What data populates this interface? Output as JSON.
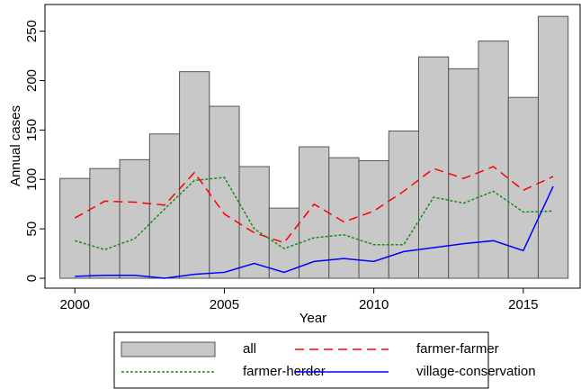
{
  "chart_data": {
    "type": "bar",
    "x": [
      2000,
      2001,
      2002,
      2003,
      2004,
      2005,
      2006,
      2007,
      2008,
      2009,
      2010,
      2011,
      2012,
      2013,
      2014,
      2015,
      2016
    ],
    "x_label": "Year",
    "y_label": "Annual cases",
    "xlim": [
      1999,
      2016.9
    ],
    "xticks": [
      2000,
      2005,
      2010,
      2015
    ],
    "ylim": [
      -10,
      277
    ],
    "yticks": [
      0,
      50,
      100,
      150,
      200,
      250
    ],
    "series": [
      {
        "name": "all",
        "type": "bar",
        "color": "#c8c8c8",
        "values": [
          101,
          111,
          120,
          146,
          209,
          174,
          113,
          71,
          133,
          122,
          119,
          149,
          224,
          212,
          240,
          183,
          265
        ]
      },
      {
        "name": "farmer-farmer",
        "type": "line",
        "style": "dashed",
        "color": "#ff0000",
        "values": [
          61,
          78,
          77,
          74,
          107,
          65,
          46,
          36,
          75,
          57,
          68,
          88,
          111,
          101,
          113,
          89,
          103
        ]
      },
      {
        "name": "farmer-herder",
        "type": "line",
        "style": "dotted",
        "color": "#1a8c1a",
        "values": [
          38,
          29,
          40,
          70,
          99,
          102,
          50,
          30,
          41,
          44,
          34,
          34,
          82,
          76,
          88,
          67,
          68
        ]
      },
      {
        "name": "village-conservation",
        "type": "line",
        "style": "solid",
        "color": "#0000ff",
        "values": [
          2,
          3,
          3,
          0,
          4,
          6,
          15,
          6,
          17,
          20,
          17,
          27,
          31,
          35,
          38,
          28,
          93
        ]
      }
    ]
  }
}
